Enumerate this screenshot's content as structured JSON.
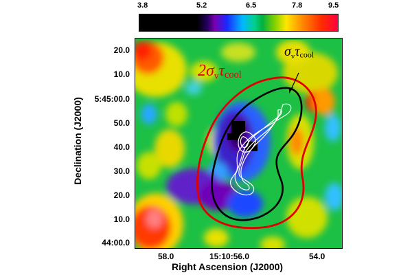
{
  "colorbar": {
    "ticks": [
      "3.8",
      "5.2",
      "6.5",
      "7.8",
      "9.5"
    ]
  },
  "map": {
    "y_ticks": [
      "20.0",
      "10.0",
      "5:45:00.0",
      "50.0",
      "40.0",
      "30.0",
      "20.0",
      "10.0",
      "44:00.0"
    ],
    "x_ticks": [
      "58.0",
      "15:10:56.0",
      "54.0"
    ],
    "x_label": "Right Ascension (J2000)",
    "y_label": "Declination (J2000)"
  },
  "annotations": {
    "red_label": {
      "coef": "2",
      "sigma": "σ",
      "v": "v",
      "tau": "τ",
      "cool": "cool"
    },
    "black_label": {
      "sigma": "σ",
      "v": "v",
      "tau": "τ",
      "cool": "cool"
    }
  },
  "colors": {
    "red_contour": "#e00000",
    "black_contour": "#000000",
    "white_contour": "#ffffff"
  }
}
